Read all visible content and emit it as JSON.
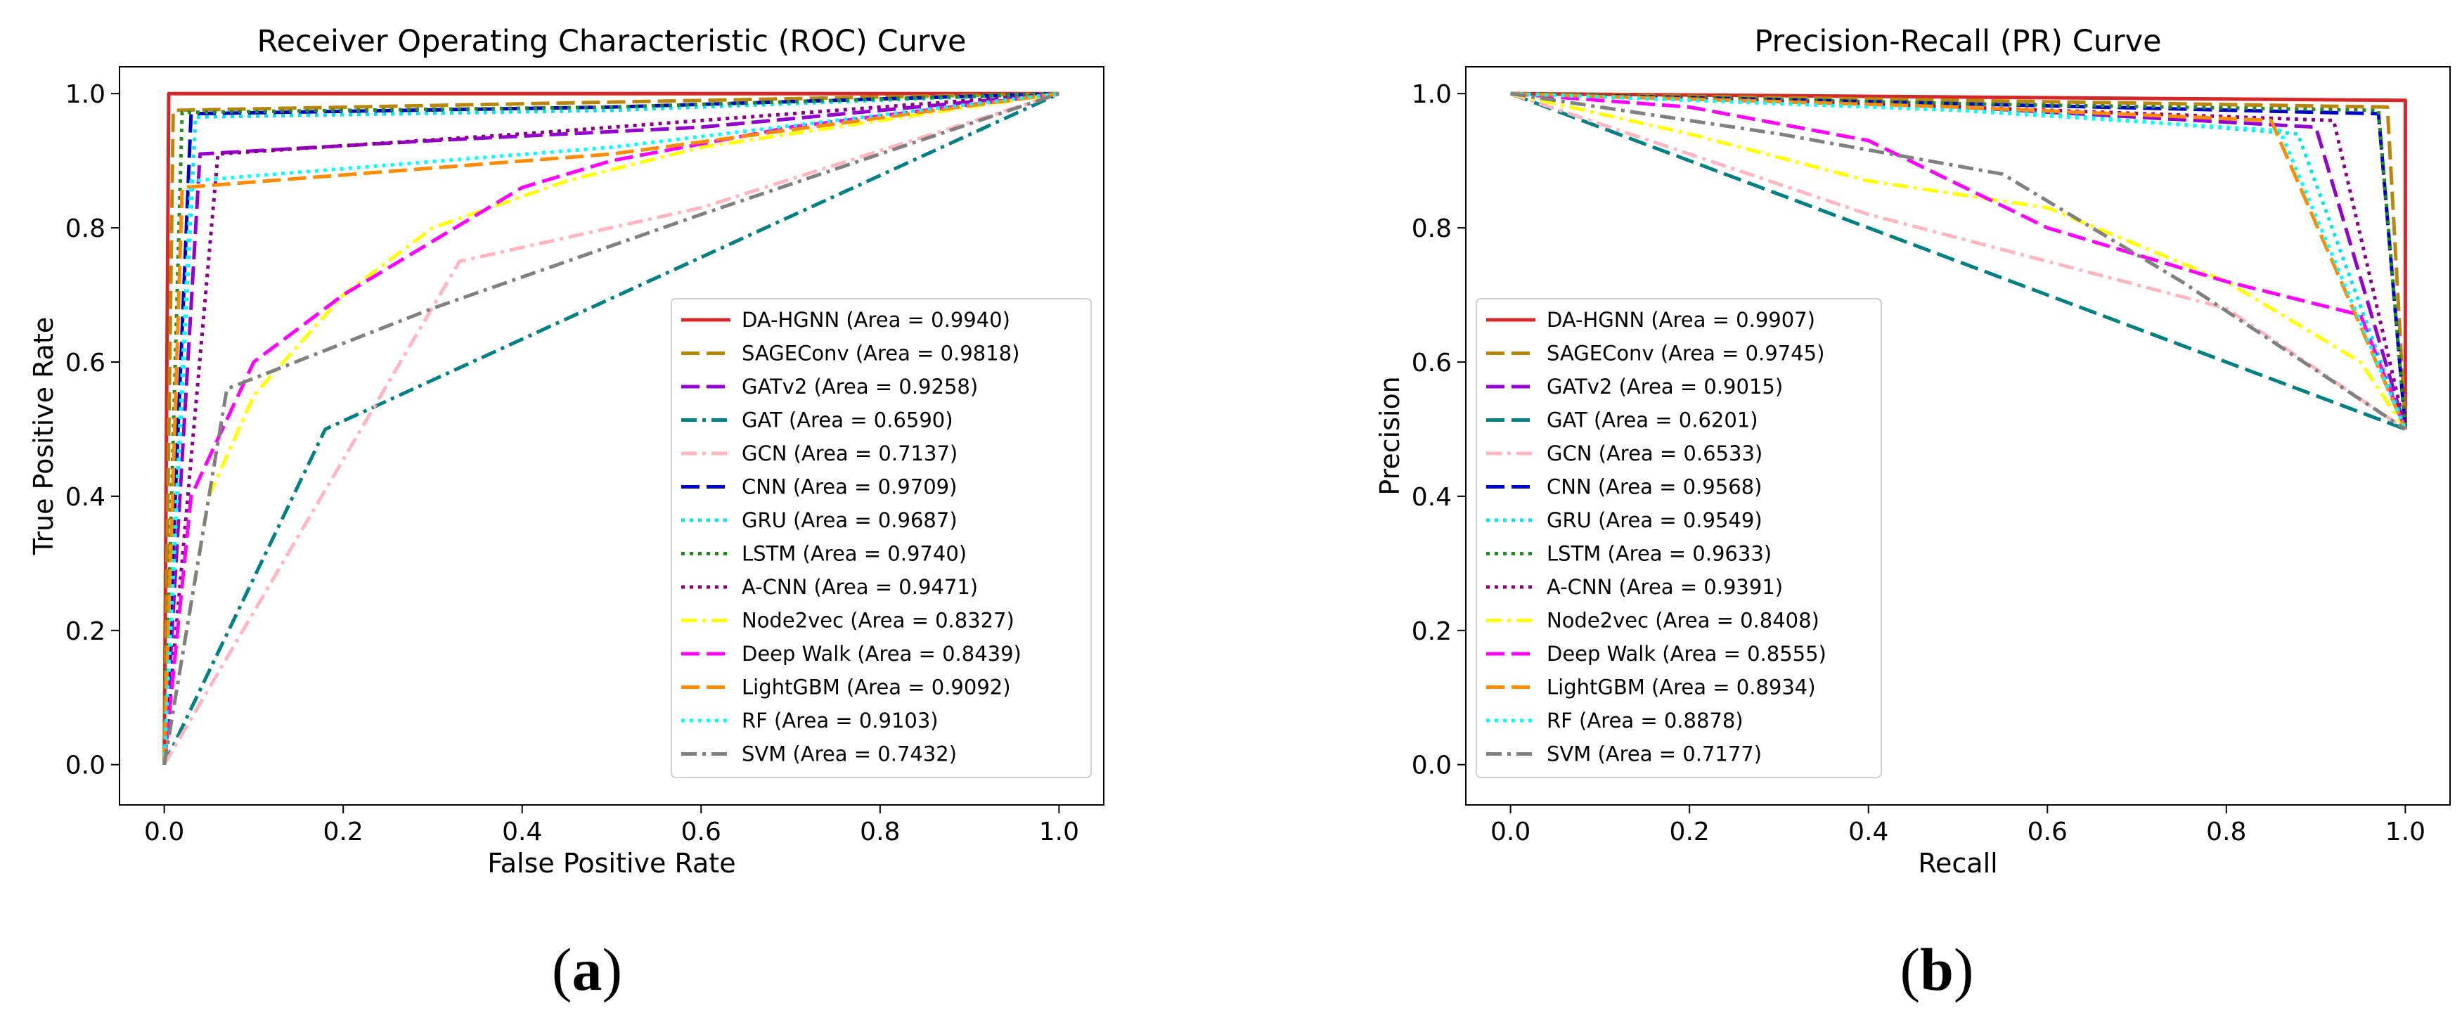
{
  "panel_labels": {
    "left_open": "(",
    "left_letter": "a",
    "left_close": ")",
    "right_open": "(",
    "right_letter": "b",
    "right_close": ")"
  },
  "chart_data": [
    {
      "type": "line",
      "title": "Receiver Operating Characteristic (ROC) Curve",
      "xlabel": "False Positive Rate",
      "ylabel": "True Positive Rate",
      "xlim": [
        -0.05,
        1.05
      ],
      "ylim": [
        -0.06,
        1.04
      ],
      "xticks": [
        "0.0",
        "0.2",
        "0.4",
        "0.6",
        "0.8",
        "1.0"
      ],
      "yticks": [
        "0.0",
        "0.2",
        "0.4",
        "0.6",
        "0.8",
        "1.0"
      ],
      "grid": false,
      "legend_position": "lower-right",
      "series": [
        {
          "name": "DA-HGNN (Area = 0.9940)",
          "color": "#d62728",
          "dash": "solid",
          "x": [
            0,
            0.005,
            1
          ],
          "y": [
            0,
            1.0,
            1.0
          ]
        },
        {
          "name": "SAGEConv (Area = 0.9818)",
          "color": "#b8860b",
          "dash": "long",
          "x": [
            0,
            0.01,
            1
          ],
          "y": [
            0,
            0.975,
            1.0
          ]
        },
        {
          "name": "GATv2 (Area = 0.9258)",
          "color": "#9400d3",
          "dash": "long",
          "x": [
            0,
            0.04,
            0.3,
            0.6,
            1
          ],
          "y": [
            0,
            0.91,
            0.93,
            0.95,
            1.0
          ]
        },
        {
          "name": "GAT (Area = 0.6590)",
          "color": "#008080",
          "dash": "dashdot",
          "x": [
            0,
            0.18,
            1
          ],
          "y": [
            0,
            0.5,
            1.0
          ]
        },
        {
          "name": "GCN (Area = 0.7137)",
          "color": "#ffb6c1",
          "dash": "dashdot",
          "x": [
            0,
            0.33,
            0.6,
            1
          ],
          "y": [
            0,
            0.75,
            0.83,
            1.0
          ]
        },
        {
          "name": "CNN (Area = 0.9709)",
          "color": "#0000cd",
          "dash": "long",
          "x": [
            0,
            0.03,
            0.5,
            1
          ],
          "y": [
            0,
            0.97,
            0.98,
            1.0
          ]
        },
        {
          "name": "GRU (Area = 0.9687)",
          "color": "#00e5ee",
          "dash": "dot",
          "x": [
            0,
            0.035,
            0.5,
            1
          ],
          "y": [
            0,
            0.965,
            0.975,
            1.0
          ]
        },
        {
          "name": "LSTM (Area = 0.9740)",
          "color": "#228b22",
          "dash": "dot",
          "x": [
            0,
            0.02,
            0.5,
            1
          ],
          "y": [
            0,
            0.972,
            0.98,
            1.0
          ]
        },
        {
          "name": "A-CNN (Area = 0.9471)",
          "color": "#8b008b",
          "dash": "dot",
          "x": [
            0,
            0.06,
            0.4,
            1
          ],
          "y": [
            0,
            0.91,
            0.94,
            1.0
          ]
        },
        {
          "name": "Node2vec (Area = 0.8327)",
          "color": "#ffff00",
          "dash": "dashdot",
          "x": [
            0,
            0.05,
            0.1,
            0.2,
            0.3,
            0.45,
            0.6,
            1
          ],
          "y": [
            0,
            0.4,
            0.55,
            0.7,
            0.8,
            0.87,
            0.92,
            1.0
          ]
        },
        {
          "name": "Deep Walk (Area = 0.8439)",
          "color": "#ff00ff",
          "dash": "long",
          "x": [
            0,
            0.03,
            0.1,
            0.2,
            0.3,
            0.4,
            0.5,
            0.7,
            1
          ],
          "y": [
            0,
            0.4,
            0.6,
            0.7,
            0.78,
            0.86,
            0.9,
            0.95,
            1.0
          ]
        },
        {
          "name": "LightGBM (Area = 0.9092)",
          "color": "#ff8c00",
          "dash": "long",
          "x": [
            0,
            0.02,
            0.5,
            1
          ],
          "y": [
            0,
            0.86,
            0.91,
            1.0
          ]
        },
        {
          "name": "RF (Area = 0.9103)",
          "color": "#00ffff",
          "dash": "dot",
          "x": [
            0,
            0.03,
            0.5,
            1
          ],
          "y": [
            0,
            0.87,
            0.92,
            1.0
          ]
        },
        {
          "name": "SVM (Area = 0.7432)",
          "color": "#808080",
          "dash": "dashdot",
          "x": [
            0,
            0.07,
            0.3,
            0.6,
            1
          ],
          "y": [
            0,
            0.56,
            0.68,
            0.82,
            1.0
          ]
        }
      ]
    },
    {
      "type": "line",
      "title": "Precision-Recall (PR) Curve",
      "xlabel": "Recall",
      "ylabel": "Precision",
      "xlim": [
        -0.05,
        1.05
      ],
      "ylim": [
        -0.06,
        1.04
      ],
      "xticks": [
        "0.0",
        "0.2",
        "0.4",
        "0.6",
        "0.8",
        "1.0"
      ],
      "yticks": [
        "0.0",
        "0.2",
        "0.4",
        "0.6",
        "0.8",
        "1.0"
      ],
      "grid": false,
      "legend_position": "lower-left",
      "series": [
        {
          "name": "DA-HGNN (Area = 0.9907)",
          "color": "#d62728",
          "dash": "solid",
          "x": [
            0,
            0.5,
            1.0,
            1.0
          ],
          "y": [
            1.0,
            0.995,
            0.99,
            0.5
          ]
        },
        {
          "name": "SAGEConv (Area = 0.9745)",
          "color": "#b8860b",
          "dash": "long",
          "x": [
            0,
            0.5,
            0.98,
            1.0
          ],
          "y": [
            1.0,
            0.99,
            0.98,
            0.5
          ]
        },
        {
          "name": "GATv2 (Area = 0.9015)",
          "color": "#9400d3",
          "dash": "long",
          "x": [
            0,
            0.5,
            0.9,
            1.0
          ],
          "y": [
            1.0,
            0.98,
            0.95,
            0.5
          ]
        },
        {
          "name": "GAT (Area = 0.6201)",
          "color": "#008080",
          "dash": "long",
          "x": [
            0,
            1.0
          ],
          "y": [
            1.0,
            0.5
          ]
        },
        {
          "name": "GCN (Area = 0.6533)",
          "color": "#ffb6c1",
          "dash": "dashdot",
          "x": [
            0,
            0.4,
            0.8,
            1.0
          ],
          "y": [
            1.0,
            0.82,
            0.68,
            0.5
          ]
        },
        {
          "name": "CNN (Area = 0.9568)",
          "color": "#0000cd",
          "dash": "long",
          "x": [
            0,
            0.5,
            0.97,
            1.0
          ],
          "y": [
            1.0,
            0.985,
            0.97,
            0.5
          ]
        },
        {
          "name": "GRU (Area = 0.9549)",
          "color": "#00e5ee",
          "dash": "dot",
          "x": [
            0,
            0.5,
            0.88,
            1.0
          ],
          "y": [
            1.0,
            0.98,
            0.94,
            0.5
          ]
        },
        {
          "name": "LSTM (Area = 0.9633)",
          "color": "#228b22",
          "dash": "dot",
          "x": [
            0,
            0.5,
            0.97,
            1.0
          ],
          "y": [
            1.0,
            0.985,
            0.975,
            0.5
          ]
        },
        {
          "name": "A-CNN (Area = 0.9391)",
          "color": "#8b008b",
          "dash": "dot",
          "x": [
            0,
            0.5,
            0.92,
            1.0
          ],
          "y": [
            1.0,
            0.98,
            0.96,
            0.5
          ]
        },
        {
          "name": "Node2vec (Area = 0.8408)",
          "color": "#ffff00",
          "dash": "dashdot",
          "x": [
            0,
            0.2,
            0.4,
            0.6,
            0.8,
            0.95,
            1.0
          ],
          "y": [
            1.0,
            0.94,
            0.87,
            0.83,
            0.72,
            0.6,
            0.5
          ]
        },
        {
          "name": "Deep Walk (Area = 0.8555)",
          "color": "#ff00ff",
          "dash": "long",
          "x": [
            0,
            0.2,
            0.4,
            0.6,
            0.8,
            0.95,
            1.0
          ],
          "y": [
            1.0,
            0.98,
            0.93,
            0.8,
            0.72,
            0.67,
            0.5
          ]
        },
        {
          "name": "LightGBM (Area = 0.8934)",
          "color": "#ff8c00",
          "dash": "long",
          "x": [
            0,
            0.5,
            0.85,
            1.0
          ],
          "y": [
            1.0,
            0.98,
            0.96,
            0.5
          ]
        },
        {
          "name": "RF (Area = 0.8878)",
          "color": "#00ffff",
          "dash": "dot",
          "x": [
            0,
            0.5,
            0.86,
            1.0
          ],
          "y": [
            1.0,
            0.975,
            0.945,
            0.5
          ]
        },
        {
          "name": "SVM (Area = 0.7177)",
          "color": "#808080",
          "dash": "dashdot",
          "x": [
            0,
            0.3,
            0.55,
            0.75,
            1.0
          ],
          "y": [
            1.0,
            0.94,
            0.88,
            0.72,
            0.5
          ]
        }
      ]
    }
  ]
}
